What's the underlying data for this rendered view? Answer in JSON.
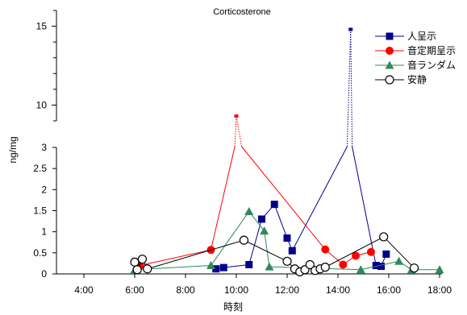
{
  "chart_data": {
    "type": "line",
    "title": "Corticosterone",
    "xlabel": "時刻",
    "ylabel": "ng/mg",
    "x_unit": "time of day (hours)",
    "xlim": [
      4,
      18
    ],
    "x_tick_labels": [
      "4:00",
      "6:00",
      "8:00",
      "10:00",
      "12:00",
      "14:00",
      "16:00",
      "18:00"
    ],
    "y_axis": "broken",
    "y_lower_range": [
      0,
      3
    ],
    "y_upper_range": [
      9,
      16
    ],
    "y_tick_labels_lower": [
      "0",
      "0.5",
      "1",
      "1.5",
      "2",
      "2.5",
      "3"
    ],
    "y_tick_labels_upper": [
      "10",
      "15"
    ],
    "grid": false,
    "legend_position": "top-right",
    "series": [
      {
        "name": "人呈示",
        "color": "#00008b",
        "marker": "square",
        "points": [
          [
            9.2,
            0.12
          ],
          [
            9.5,
            0.15
          ],
          [
            10.5,
            0.22
          ],
          [
            11.0,
            1.3
          ],
          [
            11.5,
            1.65
          ],
          [
            12.0,
            0.85
          ],
          [
            12.2,
            0.55
          ],
          [
            14.5,
            14.8
          ],
          [
            15.5,
            0.2
          ],
          [
            15.7,
            0.18
          ],
          [
            15.9,
            0.47
          ]
        ]
      },
      {
        "name": "音定期呈示",
        "color": "#ff0000",
        "marker": "circle",
        "points": [
          [
            6.2,
            0.2
          ],
          [
            9.0,
            0.57
          ],
          [
            10.0,
            9.3
          ],
          [
            13.5,
            0.58
          ],
          [
            14.2,
            0.22
          ],
          [
            14.7,
            0.43
          ],
          [
            15.3,
            0.52
          ]
        ]
      },
      {
        "name": "音ランダム",
        "color": "#2e8b57",
        "marker": "triangle",
        "points": [
          [
            6.0,
            0.1
          ],
          [
            9.0,
            0.2
          ],
          [
            10.5,
            1.48
          ],
          [
            11.1,
            1.02
          ],
          [
            11.3,
            0.17
          ],
          [
            14.9,
            0.1
          ],
          [
            16.4,
            0.3
          ],
          [
            16.9,
            0.1
          ],
          [
            18.0,
            0.1
          ]
        ]
      },
      {
        "name": "安静",
        "color": "#000000",
        "marker": "open-circle",
        "points": [
          [
            6.0,
            0.28
          ],
          [
            6.1,
            0.1
          ],
          [
            6.3,
            0.35
          ],
          [
            6.5,
            0.12
          ],
          [
            10.3,
            0.8
          ],
          [
            12.0,
            0.3
          ],
          [
            12.3,
            0.12
          ],
          [
            12.5,
            0.05
          ],
          [
            12.7,
            0.1
          ],
          [
            12.9,
            0.22
          ],
          [
            13.1,
            0.08
          ],
          [
            13.3,
            0.12
          ],
          [
            13.5,
            0.16
          ],
          [
            15.8,
            0.88
          ],
          [
            17.0,
            0.14
          ]
        ]
      }
    ]
  }
}
